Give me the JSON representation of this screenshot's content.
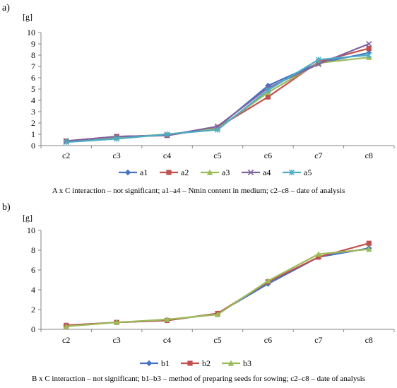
{
  "chart_data": [
    {
      "type": "line",
      "panel_label": "a)",
      "ylabel": "[g]",
      "categories": [
        "c2",
        "c3",
        "c4",
        "c5",
        "c6",
        "c7",
        "c8"
      ],
      "ylim": [
        0,
        10
      ],
      "yticks": [
        0,
        1,
        2,
        3,
        4,
        5,
        6,
        7,
        8,
        9,
        10
      ],
      "grid": false,
      "legend_position": "bottom",
      "series": [
        {
          "name": "a1",
          "color": "#4472C4",
          "marker": "diamond",
          "values": [
            0.4,
            0.8,
            0.9,
            1.6,
            5.3,
            7.3,
            8.2
          ]
        },
        {
          "name": "a2",
          "color": "#C0504D",
          "marker": "square",
          "values": [
            0.4,
            0.8,
            0.9,
            1.6,
            4.3,
            7.4,
            8.6
          ]
        },
        {
          "name": "a3",
          "color": "#9BBB59",
          "marker": "triangle",
          "values": [
            0.4,
            0.7,
            1.0,
            1.5,
            4.7,
            7.3,
            7.8
          ]
        },
        {
          "name": "a4",
          "color": "#8064A2",
          "marker": "x",
          "values": [
            0.4,
            0.8,
            0.9,
            1.7,
            5.1,
            7.2,
            9.0
          ]
        },
        {
          "name": "a5",
          "color": "#4BACC6",
          "marker": "star",
          "values": [
            0.3,
            0.6,
            1.0,
            1.4,
            4.9,
            7.6,
            8.0
          ]
        }
      ],
      "caption": "A x C interaction – not significant; a1–a4 – Nmin content in medium; c2–c8 – date of analysis"
    },
    {
      "type": "line",
      "panel_label": "b)",
      "ylabel": "[g]",
      "categories": [
        "c2",
        "c3",
        "c4",
        "c5",
        "c6",
        "c7",
        "c8"
      ],
      "ylim": [
        0,
        10
      ],
      "yticks": [
        0,
        2,
        4,
        6,
        8,
        10
      ],
      "grid": false,
      "legend_position": "bottom",
      "series": [
        {
          "name": "b1",
          "color": "#4472C4",
          "marker": "diamond",
          "values": [
            0.4,
            0.7,
            0.9,
            1.6,
            4.6,
            7.3,
            8.2
          ]
        },
        {
          "name": "b2",
          "color": "#C0504D",
          "marker": "square",
          "values": [
            0.4,
            0.7,
            0.9,
            1.6,
            4.8,
            7.3,
            8.7
          ]
        },
        {
          "name": "b3",
          "color": "#9BBB59",
          "marker": "triangle",
          "values": [
            0.3,
            0.7,
            1.0,
            1.5,
            4.9,
            7.6,
            8.1
          ]
        }
      ],
      "caption": "B x C interaction – not significant; b1–b3 – method of preparing seeds for sowing; c2–c8 – date of analysis"
    }
  ]
}
